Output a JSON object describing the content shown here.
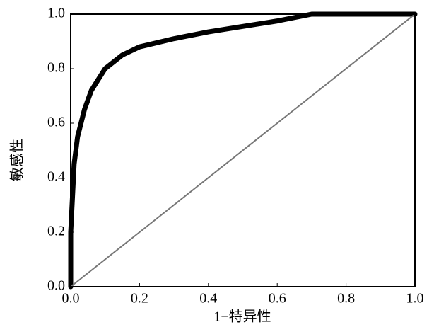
{
  "chart_data": {
    "type": "line",
    "xlabel": "1−特异性",
    "ylabel": "敏感性",
    "xlim": [
      0,
      1
    ],
    "ylim": [
      0,
      1
    ],
    "xticks": [
      {
        "value": 0,
        "label": "0.0"
      },
      0.2,
      0.4,
      0.6,
      0.8,
      {
        "value": 1,
        "label": "1.0"
      }
    ],
    "yticks": [
      {
        "value": 0,
        "label": "0.0"
      },
      0.2,
      0.4,
      0.6,
      0.8,
      {
        "value": 1,
        "label": "1.0"
      }
    ],
    "grid": false,
    "series": [
      {
        "color": "#000000",
        "x": [
          0,
          0,
          0.01,
          0.02,
          0.04,
          0.06,
          0.1,
          0.15,
          0.2,
          0.3,
          0.4,
          0.5,
          0.6,
          0.7,
          1.0
        ],
        "values": [
          0,
          0.2,
          0.45,
          0.55,
          0.65,
          0.72,
          0.8,
          0.85,
          0.88,
          0.91,
          0.935,
          0.955,
          0.975,
          1.0,
          1.0
        ]
      },
      {
        "color": "#777777",
        "x": [
          0,
          1
        ],
        "values": [
          0,
          1
        ]
      }
    ]
  }
}
